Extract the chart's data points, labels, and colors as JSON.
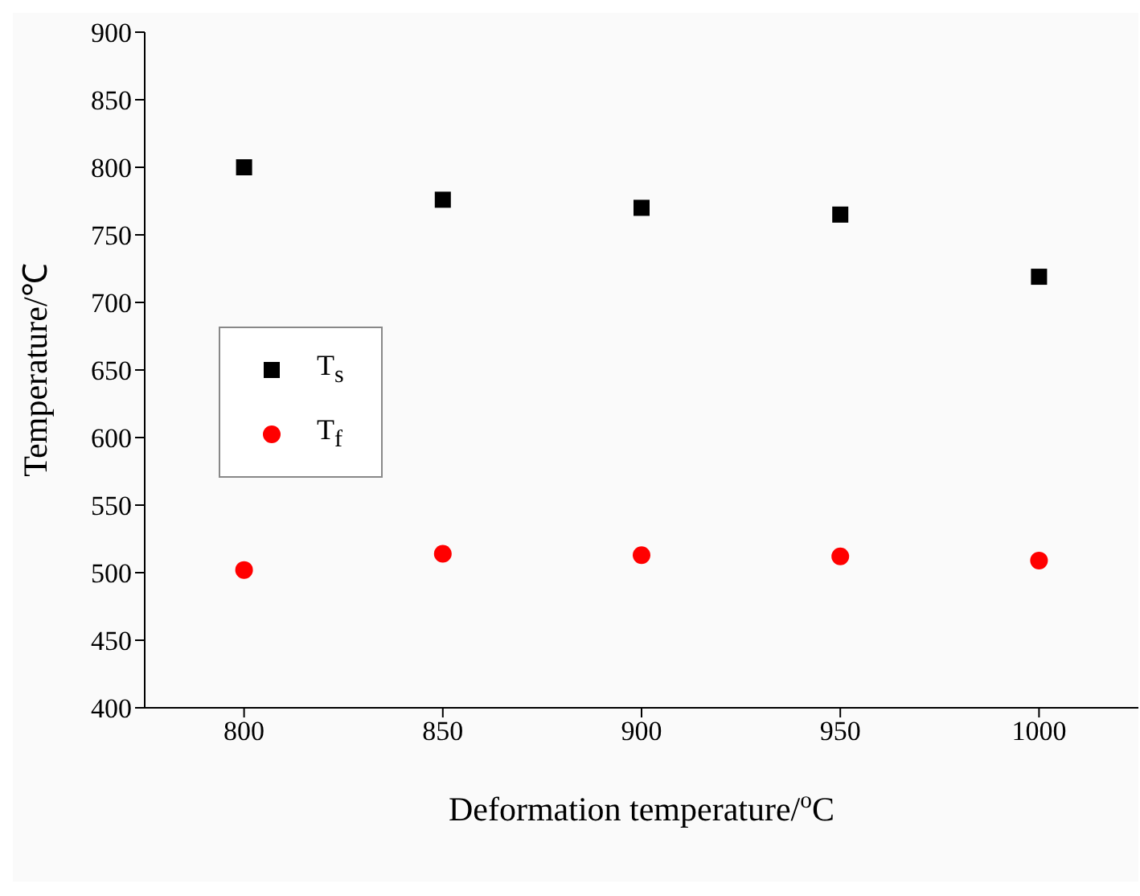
{
  "chart_data": {
    "type": "scatter",
    "xlabel": "Deformation temperature/$^{o}$C",
    "ylabel": "Temperature/℃",
    "x": [
      800,
      850,
      900,
      950,
      1000
    ],
    "series": [
      {
        "name": "T$_{s}$",
        "color": "#000000",
        "marker": "square",
        "values": [
          800,
          776,
          770,
          765,
          719
        ]
      },
      {
        "name": "T$_{f}$",
        "color": "#ff0000",
        "marker": "circle",
        "values": [
          502,
          514,
          513,
          512,
          509
        ]
      }
    ],
    "xlim": [
      775,
      1025
    ],
    "xticks": [
      800,
      850,
      900,
      950,
      1000
    ],
    "ylim": [
      400,
      900
    ],
    "yticks": [
      400,
      450,
      500,
      550,
      600,
      650,
      700,
      750,
      800,
      850,
      900
    ],
    "grid": false,
    "legend": "left"
  }
}
